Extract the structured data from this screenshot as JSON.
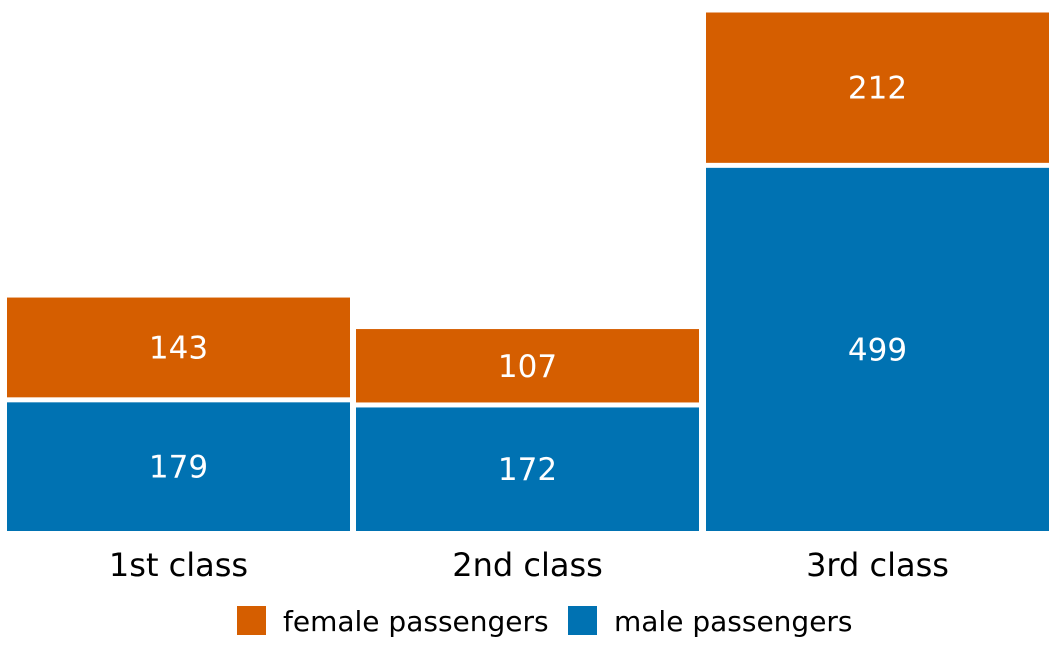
{
  "chart_data": {
    "type": "bar",
    "stacked": true,
    "categories": [
      "1st class",
      "2nd class",
      "3rd class"
    ],
    "series": [
      {
        "name": "male passengers",
        "values": [
          179,
          172,
          499
        ],
        "color": "#0072B2"
      },
      {
        "name": "female passengers",
        "values": [
          143,
          107,
          212
        ],
        "color": "#D55E00"
      }
    ],
    "legend": {
      "placement": "bottom",
      "entries": [
        "female passengers",
        "male passengers"
      ]
    },
    "title": "",
    "xlabel": "",
    "ylabel": "",
    "ylim": [
      0,
      711
    ],
    "grid": false
  }
}
